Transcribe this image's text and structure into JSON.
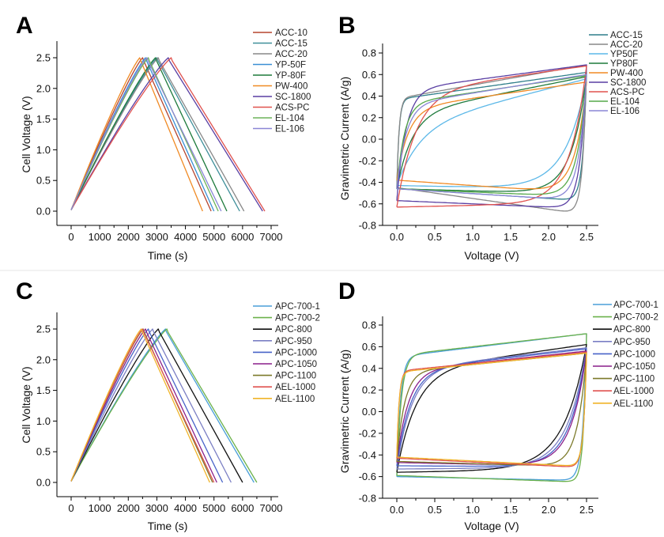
{
  "chart_data": [
    {
      "panel": "A",
      "type": "line",
      "xlabel": "Time (s)",
      "ylabel": "Cell Voltage (V)",
      "xlim": [
        0,
        7000
      ],
      "ylim": [
        0,
        2.5
      ],
      "xticks": [
        "0",
        "1000",
        "2000",
        "3000",
        "4000",
        "5000",
        "6000",
        "7000"
      ],
      "yticks": [
        "0.0",
        "0.5",
        "1.0",
        "1.5",
        "2.0",
        "2.5"
      ],
      "legend_position": "top-right",
      "series": [
        {
          "name": "ACC-10",
          "color": "#b5452f",
          "peak_time": 2500,
          "end_time": 4900,
          "vmax": 2.5
        },
        {
          "name": "ACC-15",
          "color": "#3f8f9a",
          "peak_time": 3000,
          "end_time": 5900,
          "vmax": 2.5
        },
        {
          "name": "ACC-20",
          "color": "#888888",
          "peak_time": 3050,
          "end_time": 6050,
          "vmax": 2.5
        },
        {
          "name": "YP-50F",
          "color": "#3b8fd4",
          "peak_time": 2600,
          "end_time": 5000,
          "vmax": 2.5
        },
        {
          "name": "YP-80F",
          "color": "#1e7a3c",
          "peak_time": 2950,
          "end_time": 5450,
          "vmax": 2.5
        },
        {
          "name": "PW-400",
          "color": "#f08a24",
          "peak_time": 2400,
          "end_time": 4600,
          "vmax": 2.5
        },
        {
          "name": "SC-1800",
          "color": "#5a3fa3",
          "peak_time": 3400,
          "end_time": 6700,
          "vmax": 2.5
        },
        {
          "name": "ACS-PC",
          "color": "#e0524f",
          "peak_time": 3500,
          "end_time": 6780,
          "vmax": 2.5
        },
        {
          "name": "EL-104",
          "color": "#6db35a",
          "peak_time": 2700,
          "end_time": 5150,
          "vmax": 2.5
        },
        {
          "name": "EL-106",
          "color": "#8a86d6",
          "peak_time": 2650,
          "end_time": 5250,
          "vmax": 2.5
        }
      ]
    },
    {
      "panel": "B",
      "type": "line",
      "xlabel": "Voltage (V)",
      "ylabel": "Gravimetric Current (A/g)",
      "xlim": [
        0,
        2.5
      ],
      "ylim": [
        -0.8,
        0.8
      ],
      "xticks": [
        "0.0",
        "0.5",
        "1.0",
        "1.5",
        "2.0",
        "2.5"
      ],
      "yticks": [
        "-0.8",
        "-0.6",
        "-0.4",
        "-0.2",
        "0.0",
        "0.2",
        "0.4",
        "0.6",
        "0.8"
      ],
      "legend_position": "top-right",
      "series": [
        {
          "name": "ACC-15",
          "color": "#2f7f8a",
          "tau": 0.03,
          "upper_at_0_5": 0.42,
          "upper_at_2_5": 0.62,
          "lower_at_0": -0.46,
          "lower_at_2_0": -0.55,
          "tail": 0.05
        },
        {
          "name": "ACC-20",
          "color": "#888888",
          "tau": 0.03,
          "upper_at_0_5": 0.44,
          "upper_at_2_5": 0.69,
          "lower_at_0": -0.45,
          "lower_at_2_0": -0.65,
          "tail": 0.05
        },
        {
          "name": "YP50F",
          "color": "#5cb8e8",
          "tau": 0.3,
          "upper_at_0_5": 0.2,
          "upper_at_2_5": 0.56,
          "lower_at_0": -0.43,
          "lower_at_2_0": -0.46,
          "tail": 0.28
        },
        {
          "name": "YP80F",
          "color": "#1e7a3c",
          "tau": 0.2,
          "upper_at_0_5": 0.3,
          "upper_at_2_5": 0.58,
          "lower_at_0": -0.46,
          "lower_at_2_0": -0.5,
          "tail": 0.2
        },
        {
          "name": "PW-400",
          "color": "#f08a24",
          "tau": 0.15,
          "upper_at_0_5": 0.33,
          "upper_at_2_5": 0.53,
          "lower_at_0": -0.38,
          "lower_at_2_0": -0.48,
          "tail": 0.15
        },
        {
          "name": "SC-1800",
          "color": "#5a3fa3",
          "tau": 0.12,
          "upper_at_0_5": 0.5,
          "upper_at_2_5": 0.69,
          "lower_at_0": -0.57,
          "lower_at_2_0": -0.63,
          "tail": 0.08
        },
        {
          "name": "ACS-PC",
          "color": "#e0524f",
          "tau": 0.25,
          "upper_at_0_5": 0.48,
          "upper_at_2_5": 0.68,
          "lower_at_0": -0.63,
          "lower_at_2_0": -0.6,
          "tail": 0.22
        },
        {
          "name": "EL-104",
          "color": "#55a84a",
          "tau": 0.1,
          "upper_at_0_5": 0.38,
          "upper_at_2_5": 0.59,
          "lower_at_0": -0.46,
          "lower_at_2_0": -0.52,
          "tail": 0.12
        },
        {
          "name": "EL-106",
          "color": "#8a86d6",
          "tau": 0.12,
          "upper_at_0_5": 0.37,
          "upper_at_2_5": 0.6,
          "lower_at_0": -0.46,
          "lower_at_2_0": -0.55,
          "tail": 0.1
        }
      ]
    },
    {
      "panel": "C",
      "type": "line",
      "xlabel": "Time (s)",
      "ylabel": "Cell Voltage (V)",
      "xlim": [
        0,
        7000
      ],
      "ylim": [
        0,
        2.5
      ],
      "xticks": [
        "0",
        "1000",
        "2000",
        "3000",
        "4000",
        "5000",
        "6000",
        "7000"
      ],
      "yticks": [
        "0.0",
        "0.5",
        "1.0",
        "1.5",
        "2.0",
        "2.5"
      ],
      "legend_position": "top-right",
      "series": [
        {
          "name": "APC-700-1",
          "color": "#4a9fd8",
          "peak_time": 3300,
          "end_time": 6400,
          "vmax": 2.5
        },
        {
          "name": "APC-700-2",
          "color": "#6cb24c",
          "peak_time": 3350,
          "end_time": 6500,
          "vmax": 2.5
        },
        {
          "name": "APC-800",
          "color": "#111111",
          "peak_time": 3050,
          "end_time": 6000,
          "vmax": 2.5
        },
        {
          "name": "APC-950",
          "color": "#7b7fc4",
          "peak_time": 2850,
          "end_time": 5600,
          "vmax": 2.5
        },
        {
          "name": "APC-1000",
          "color": "#4863c8",
          "peak_time": 2700,
          "end_time": 5300,
          "vmax": 2.5
        },
        {
          "name": "APC-1050",
          "color": "#8a1f8a",
          "peak_time": 2600,
          "end_time": 5100,
          "vmax": 2.5
        },
        {
          "name": "APC-1100",
          "color": "#7c7a2a",
          "peak_time": 2520,
          "end_time": 4950,
          "vmax": 2.5
        },
        {
          "name": "AEL-1000",
          "color": "#e0524f",
          "peak_time": 2500,
          "end_time": 5000,
          "vmax": 2.5
        },
        {
          "name": "AEL-1100",
          "color": "#f0b429",
          "peak_time": 2450,
          "end_time": 4850,
          "vmax": 2.5
        }
      ]
    },
    {
      "panel": "D",
      "type": "line",
      "xlabel": "Voltage (V)",
      "ylabel": "Gravimetric Current (A/g)",
      "xlim": [
        0,
        2.5
      ],
      "ylim": [
        -0.8,
        0.8
      ],
      "xticks": [
        "0.0",
        "0.5",
        "1.0",
        "1.5",
        "2.0",
        "2.5"
      ],
      "yticks": [
        "-0.8",
        "-0.6",
        "-0.4",
        "-0.2",
        "0.0",
        "0.2",
        "0.4",
        "0.6",
        "0.8"
      ],
      "legend_position": "top-right",
      "series": [
        {
          "name": "APC-700-1",
          "color": "#4a9fd8",
          "tau": 0.05,
          "upper_at_0_5": 0.55,
          "upper_at_2_5": 0.72,
          "lower_at_0": -0.6,
          "lower_at_2_0": -0.63,
          "tail": 0.05
        },
        {
          "name": "APC-700-2",
          "color": "#6cb24c",
          "tau": 0.06,
          "upper_at_0_5": 0.56,
          "upper_at_2_5": 0.72,
          "lower_at_0": -0.59,
          "lower_at_2_0": -0.64,
          "tail": 0.04
        },
        {
          "name": "APC-800",
          "color": "#111111",
          "tau": 0.25,
          "upper_at_0_5": 0.42,
          "upper_at_2_5": 0.62,
          "lower_at_0": -0.56,
          "lower_at_2_0": -0.54,
          "tail": 0.3
        },
        {
          "name": "APC-950",
          "color": "#7b7fc4",
          "tau": 0.2,
          "upper_at_0_5": 0.43,
          "upper_at_2_5": 0.59,
          "lower_at_0": -0.53,
          "lower_at_2_0": -0.52,
          "tail": 0.25
        },
        {
          "name": "APC-1000",
          "color": "#4863c8",
          "tau": 0.18,
          "upper_at_0_5": 0.42,
          "upper_at_2_5": 0.58,
          "lower_at_0": -0.5,
          "lower_at_2_0": -0.51,
          "tail": 0.22
        },
        {
          "name": "APC-1050",
          "color": "#8a1f8a",
          "tau": 0.15,
          "upper_at_0_5": 0.41,
          "upper_at_2_5": 0.56,
          "lower_at_0": -0.47,
          "lower_at_2_0": -0.5,
          "tail": 0.2
        },
        {
          "name": "APC-1100",
          "color": "#7c7a2a",
          "tau": 0.1,
          "upper_at_0_5": 0.4,
          "upper_at_2_5": 0.54,
          "lower_at_0": -0.46,
          "lower_at_2_0": -0.5,
          "tail": 0.12
        },
        {
          "name": "AEL-1000",
          "color": "#e0524f",
          "tau": 0.03,
          "upper_at_0_5": 0.41,
          "upper_at_2_5": 0.55,
          "lower_at_0": -0.43,
          "lower_at_2_0": -0.5,
          "tail": 0.04
        },
        {
          "name": "AEL-1100",
          "color": "#f0b429",
          "tau": 0.03,
          "upper_at_0_5": 0.4,
          "upper_at_2_5": 0.54,
          "lower_at_0": -0.42,
          "lower_at_2_0": -0.49,
          "tail": 0.04
        }
      ]
    }
  ]
}
